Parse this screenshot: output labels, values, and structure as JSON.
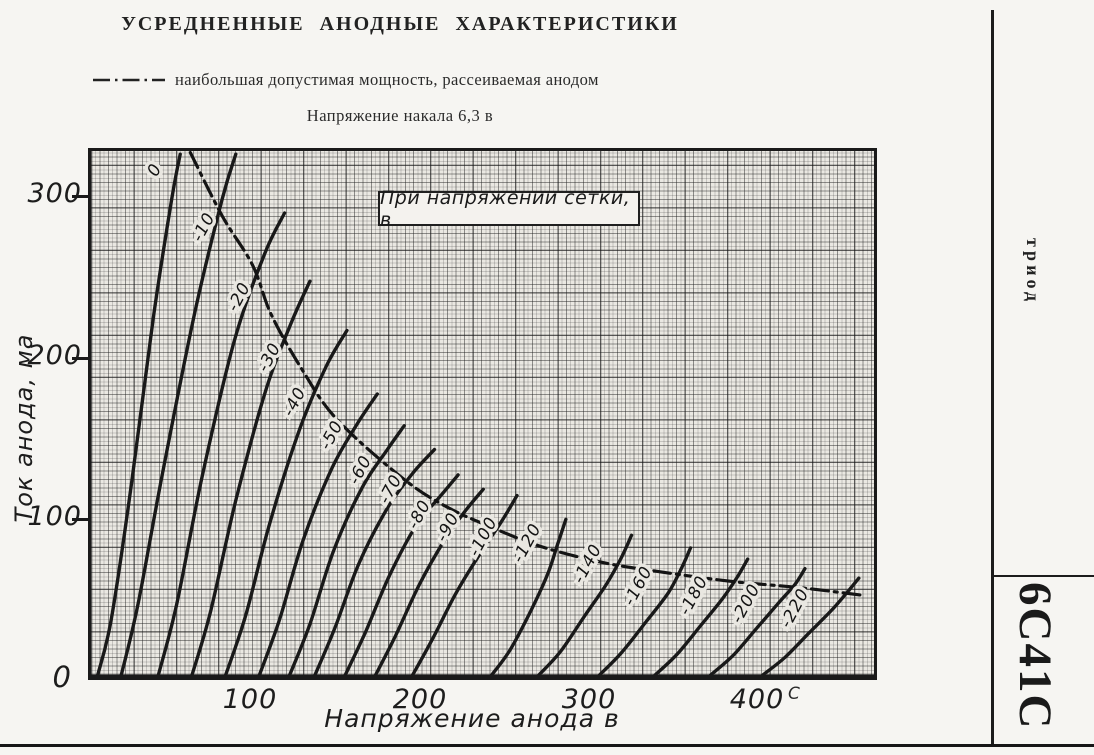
{
  "header": {
    "title": "УСРЕДНЕННЫЕ АНОДНЫЕ ХАРАКТЕРИСТИКИ",
    "legend_text": "наибольшая допустимая мощность, рассеиваемая анодом",
    "subtitle": "Напряжение накала 6,3 в"
  },
  "sidebar": {
    "device_type": "триод",
    "tube_name": "6С41С"
  },
  "chart_data": {
    "type": "line",
    "title": "УСРЕДНЕННЫЕ АНОДНЫЕ ХАРАКТЕРИСТИКИ",
    "inset_label": "При напряжении сетки, в",
    "xlabel": "Напряжение анода в",
    "ylabel": "Ток анода, ма",
    "xlim": [
      0,
      465
    ],
    "ylim": [
      0,
      330
    ],
    "x_ticks": [
      "0",
      "100",
      "200",
      "300",
      "400"
    ],
    "y_ticks": [
      "300",
      "200",
      "100"
    ],
    "x_axis_stray_mark": "С",
    "grid": "fine millimeter grid, heavier lines at intervals",
    "power_limit_line": {
      "style": "dash-dot",
      "label": "наибольшая допустимая мощность, рассеиваемая анодом",
      "points": [
        [
          59,
          329
        ],
        [
          78,
          289
        ],
        [
          96,
          258
        ],
        [
          107,
          227
        ],
        [
          125,
          193
        ],
        [
          146,
          161
        ],
        [
          185,
          124
        ],
        [
          211,
          106
        ],
        [
          238,
          93
        ],
        [
          267,
          81
        ],
        [
          303,
          71
        ],
        [
          338,
          65
        ],
        [
          380,
          59
        ],
        [
          421,
          55
        ],
        [
          460,
          50
        ]
      ]
    },
    "series": [
      {
        "grid_voltage_v": 0,
        "label": "0",
        "label_at": [
          38,
          318
        ],
        "points": [
          [
            4,
            0
          ],
          [
            12,
            35
          ],
          [
            24,
            120
          ],
          [
            37,
            225
          ],
          [
            48,
            300
          ],
          [
            53,
            328
          ]
        ]
      },
      {
        "grid_voltage_v": -10,
        "label": "-10",
        "label_at": [
          67,
          282
        ],
        "points": [
          [
            18,
            0
          ],
          [
            28,
            45
          ],
          [
            43,
            130
          ],
          [
            62,
            230
          ],
          [
            78,
            300
          ],
          [
            86,
            328
          ]
        ]
      },
      {
        "grid_voltage_v": -20,
        "label": "-20",
        "label_at": [
          88,
          238
        ],
        "points": [
          [
            40,
            0
          ],
          [
            51,
            45
          ],
          [
            66,
            125
          ],
          [
            85,
            210
          ],
          [
            103,
            265
          ],
          [
            115,
            291
          ]
        ]
      },
      {
        "grid_voltage_v": -30,
        "label": "-30",
        "label_at": [
          106,
          200
        ],
        "points": [
          [
            60,
            0
          ],
          [
            71,
            40
          ],
          [
            86,
            110
          ],
          [
            104,
            180
          ],
          [
            119,
            222
          ],
          [
            130,
            248
          ]
        ]
      },
      {
        "grid_voltage_v": -40,
        "label": "-40",
        "label_at": [
          121,
          172
        ],
        "points": [
          [
            80,
            0
          ],
          [
            92,
            38
          ],
          [
            106,
            95
          ],
          [
            124,
            155
          ],
          [
            140,
            195
          ],
          [
            152,
            217
          ]
        ]
      },
      {
        "grid_voltage_v": -50,
        "label": "-50",
        "label_at": [
          143,
          151
        ],
        "points": [
          [
            100,
            0
          ],
          [
            112,
            35
          ],
          [
            126,
            85
          ],
          [
            143,
            130
          ],
          [
            158,
            158
          ],
          [
            170,
            177
          ]
        ]
      },
      {
        "grid_voltage_v": -60,
        "label": "-60",
        "label_at": [
          160,
          129
        ],
        "points": [
          [
            118,
            0
          ],
          [
            130,
            32
          ],
          [
            144,
            78
          ],
          [
            161,
            118
          ],
          [
            176,
            142
          ],
          [
            186,
            157
          ]
        ]
      },
      {
        "grid_voltage_v": -70,
        "label": "-70",
        "label_at": [
          178,
          117
        ],
        "points": [
          [
            133,
            0
          ],
          [
            145,
            30
          ],
          [
            159,
            70
          ],
          [
            176,
            105
          ],
          [
            191,
            127
          ],
          [
            204,
            142
          ]
        ]
      },
      {
        "grid_voltage_v": -80,
        "label": "-80",
        "label_at": [
          195,
          101
        ],
        "points": [
          [
            151,
            0
          ],
          [
            163,
            27
          ],
          [
            177,
            62
          ],
          [
            193,
            94
          ],
          [
            207,
            112
          ],
          [
            218,
            126
          ]
        ]
      },
      {
        "grid_voltage_v": -90,
        "label": "-90",
        "label_at": [
          212,
          93
        ],
        "points": [
          [
            169,
            0
          ],
          [
            181,
            25
          ],
          [
            195,
            57
          ],
          [
            210,
            85
          ],
          [
            222,
            103
          ],
          [
            233,
            117
          ]
        ]
      },
      {
        "grid_voltage_v": -100,
        "label": "-100",
        "label_at": [
          233,
          87
        ],
        "points": [
          [
            191,
            0
          ],
          [
            203,
            23
          ],
          [
            217,
            52
          ],
          [
            232,
            78
          ],
          [
            244,
            97
          ],
          [
            253,
            113
          ]
        ]
      },
      {
        "grid_voltage_v": -120,
        "label": "-120",
        "label_at": [
          259,
          83
        ],
        "points": [
          [
            238,
            0
          ],
          [
            249,
            16
          ],
          [
            261,
            40
          ],
          [
            271,
            63
          ],
          [
            277,
            82
          ],
          [
            282,
            98
          ]
        ]
      },
      {
        "grid_voltage_v": -140,
        "label": "-140",
        "label_at": [
          295,
          70
        ],
        "points": [
          [
            266,
            0
          ],
          [
            279,
            15
          ],
          [
            293,
            37
          ],
          [
            306,
            57
          ],
          [
            315,
            74
          ],
          [
            321,
            88
          ]
        ]
      },
      {
        "grid_voltage_v": -160,
        "label": "-160",
        "label_at": [
          325,
          56
        ],
        "points": [
          [
            302,
            0
          ],
          [
            315,
            14
          ],
          [
            330,
            34
          ],
          [
            343,
            52
          ],
          [
            351,
            68
          ],
          [
            356,
            80
          ]
        ]
      },
      {
        "grid_voltage_v": -180,
        "label": "-180",
        "label_at": [
          358,
          50
        ],
        "points": [
          [
            335,
            0
          ],
          [
            348,
            13
          ],
          [
            362,
            31
          ],
          [
            375,
            48
          ],
          [
            384,
            62
          ],
          [
            390,
            73
          ]
        ]
      },
      {
        "grid_voltage_v": -200,
        "label": "-200",
        "label_at": [
          389,
          45
        ],
        "points": [
          [
            368,
            0
          ],
          [
            381,
            12
          ],
          [
            395,
            29
          ],
          [
            408,
            45
          ],
          [
            418,
            57
          ],
          [
            424,
            67
          ]
        ]
      },
      {
        "grid_voltage_v": -220,
        "label": "-220",
        "label_at": [
          418,
          42
        ],
        "points": [
          [
            399,
            0
          ],
          [
            412,
            11
          ],
          [
            426,
            26
          ],
          [
            440,
            41
          ],
          [
            449,
            52
          ],
          [
            456,
            61
          ]
        ]
      }
    ]
  }
}
